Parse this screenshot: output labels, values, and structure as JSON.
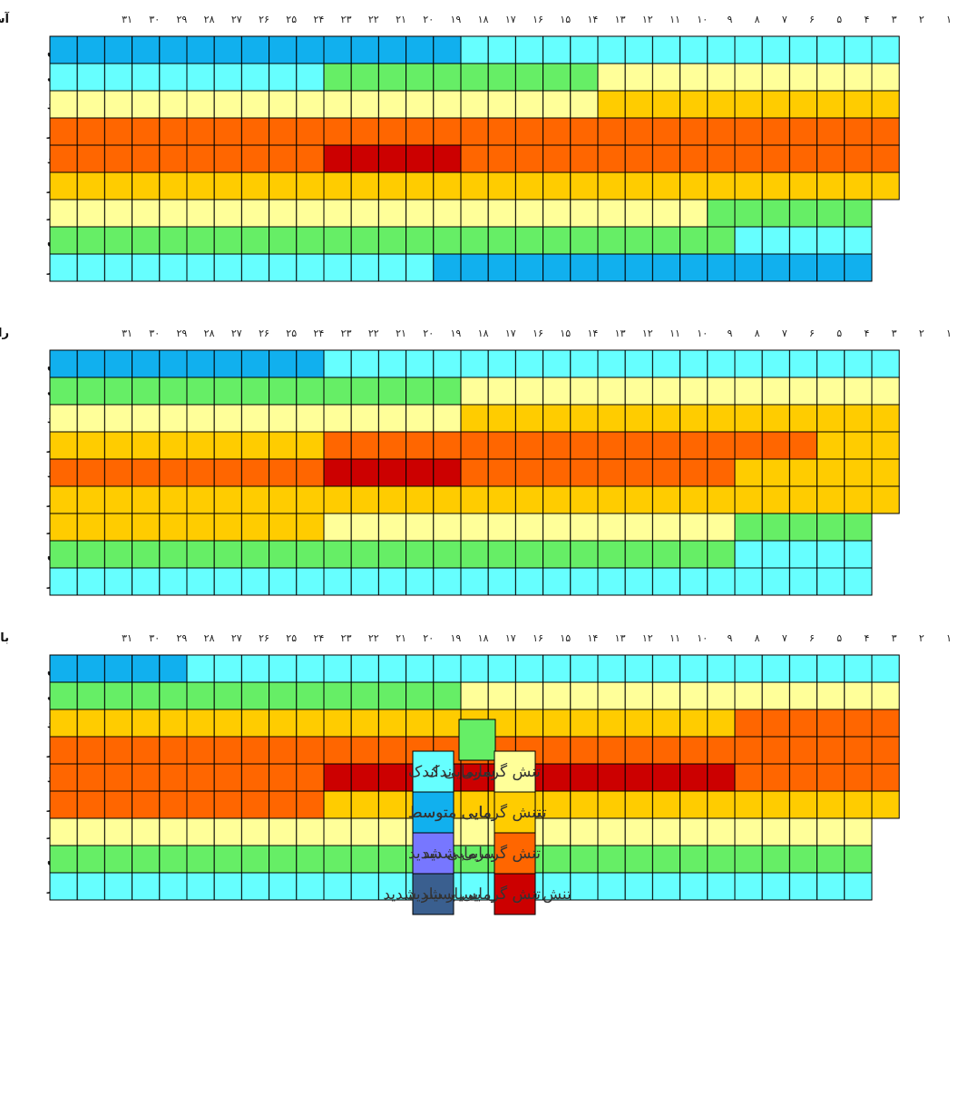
{
  "chart_data": [
    {
      "type": "heatmap",
      "title": "آستارا انزلی",
      "x_tick_labels": [
        "۱",
        "۲",
        "۳",
        "۴",
        "۵",
        "۶",
        "۷",
        "۸",
        "۹",
        "۱۰",
        "۱۱",
        "۱۲",
        "۱۳",
        "۱۴",
        "۱۵",
        "۱۶",
        "۱۷",
        "۱۸",
        "۱۹",
        "۲۰",
        "۲۱",
        "۲۲",
        "۲۳",
        "۲۴",
        "۲۵",
        "۲۶",
        "۲۷",
        "۲۸",
        "۲۹",
        "۳۰",
        "۳۱"
      ],
      "rows": [
        "فروردین",
        "اردیبهشت",
        "خرداد",
        "تیر",
        "مرداد",
        "شهریور",
        "مهر",
        "آبان",
        "آذر"
      ],
      "days_in_row": [
        31,
        31,
        31,
        31,
        31,
        31,
        30,
        30,
        30
      ],
      "runs": [
        [
          [
            15,
            "cold_moderate"
          ],
          [
            16,
            "cold_slight"
          ]
        ],
        [
          [
            10,
            "cold_slight"
          ],
          [
            10,
            "neutral"
          ],
          [
            11,
            "heat_slight"
          ]
        ],
        [
          [
            20,
            "heat_slight"
          ],
          [
            11,
            "heat_moderate"
          ]
        ],
        [
          [
            31,
            "heat_strong"
          ]
        ],
        [
          [
            10,
            "heat_strong"
          ],
          [
            5,
            "heat_very_strong"
          ],
          [
            16,
            "heat_strong"
          ]
        ],
        [
          [
            31,
            "heat_moderate"
          ]
        ],
        [
          [
            24,
            "heat_slight"
          ],
          [
            6,
            "neutral"
          ]
        ],
        [
          [
            25,
            "neutral"
          ],
          [
            5,
            "cold_slight"
          ]
        ],
        [
          [
            14,
            "cold_slight"
          ],
          [
            16,
            "cold_moderate"
          ]
        ]
      ]
    },
    {
      "type": "heatmap",
      "title": "رامسر نوشهر",
      "x_tick_labels": [
        "۱",
        "۲",
        "۳",
        "۴",
        "۵",
        "۶",
        "۷",
        "۸",
        "۹",
        "۱۰",
        "۱۱",
        "۱۲",
        "۱۳",
        "۱۴",
        "۱۵",
        "۱۶",
        "۱۷",
        "۱۸",
        "۱۹",
        "۲۰",
        "۲۱",
        "۲۲",
        "۲۳",
        "۲۴",
        "۲۵",
        "۲۶",
        "۲۷",
        "۲۸",
        "۲۹",
        "۳۰",
        "۳۱"
      ],
      "rows": [
        "فروردین",
        "اردیبهشت",
        "خرداد",
        "تیر",
        "مرداد",
        "شهریور",
        "مهر",
        "آبان",
        "آذر"
      ],
      "days_in_row": [
        31,
        31,
        31,
        31,
        31,
        31,
        30,
        30,
        30
      ],
      "runs": [
        [
          [
            10,
            "cold_moderate"
          ],
          [
            21,
            "cold_slight"
          ]
        ],
        [
          [
            15,
            "neutral"
          ],
          [
            16,
            "heat_slight"
          ]
        ],
        [
          [
            15,
            "heat_slight"
          ],
          [
            16,
            "heat_moderate"
          ]
        ],
        [
          [
            10,
            "heat_moderate"
          ],
          [
            18,
            "heat_strong"
          ],
          [
            3,
            "heat_moderate"
          ]
        ],
        [
          [
            10,
            "heat_strong"
          ],
          [
            5,
            "heat_very_strong"
          ],
          [
            10,
            "heat_strong"
          ],
          [
            6,
            "heat_moderate"
          ]
        ],
        [
          [
            31,
            "heat_moderate"
          ]
        ],
        [
          [
            10,
            "heat_moderate"
          ],
          [
            15,
            "heat_slight"
          ],
          [
            5,
            "neutral"
          ]
        ],
        [
          [
            25,
            "neutral"
          ],
          [
            5,
            "cold_slight"
          ]
        ],
        [
          [
            30,
            "cold_slight"
          ]
        ]
      ]
    },
    {
      "type": "heatmap",
      "title": "بابلسر امیرآباد",
      "x_tick_labels": [
        "۱",
        "۲",
        "۳",
        "۴",
        "۵",
        "۶",
        "۷",
        "۸",
        "۹",
        "۱۰",
        "۱۱",
        "۱۲",
        "۱۳",
        "۱۴",
        "۱۵",
        "۱۶",
        "۱۷",
        "۱۸",
        "۱۹",
        "۲۰",
        "۲۱",
        "۲۲",
        "۲۳",
        "۲۴",
        "۲۵",
        "۲۶",
        "۲۷",
        "۲۸",
        "۲۹",
        "۳۰",
        "۳۱"
      ],
      "rows": [
        "فروردین",
        "اردیبهشت",
        "خرداد",
        "تیر",
        "مرداد",
        "شهریور",
        "مهر",
        "آبان",
        "آذر"
      ],
      "days_in_row": [
        31,
        31,
        31,
        31,
        31,
        31,
        30,
        30,
        30
      ],
      "runs": [
        [
          [
            5,
            "cold_moderate"
          ],
          [
            26,
            "cold_slight"
          ]
        ],
        [
          [
            15,
            "neutral"
          ],
          [
            16,
            "heat_slight"
          ]
        ],
        [
          [
            10,
            "heat_moderate"
          ],
          [
            15,
            "heat_moderate"
          ],
          [
            6,
            "heat_strong"
          ]
        ],
        [
          [
            31,
            "heat_strong"
          ]
        ],
        [
          [
            10,
            "heat_strong"
          ],
          [
            15,
            "heat_very_strong"
          ],
          [
            6,
            "heat_strong"
          ]
        ],
        [
          [
            10,
            "heat_strong"
          ],
          [
            21,
            "heat_moderate"
          ]
        ],
        [
          [
            30,
            "heat_slight"
          ]
        ],
        [
          [
            30,
            "neutral"
          ]
        ],
        [
          [
            30,
            "cold_slight"
          ]
        ]
      ]
    }
  ],
  "palette": {
    "neutral": "#66ee66",
    "cold_slight": "#66ffff",
    "cold_moderate": "#11b0ee",
    "cold_strong": "#7777ff",
    "cold_very_strong": "#3a5f8f",
    "heat_slight": "#ffff99",
    "heat_moderate": "#ffcc00",
    "heat_strong": "#ff6600",
    "heat_very_strong": "#cc0000"
  },
  "legend": {
    "cold": [
      {
        "key": "cold_slight",
        "label": "تنش سرمایی اندک"
      },
      {
        "key": "cold_moderate",
        "label": "تنش سرمایی متوسط"
      },
      {
        "key": "cold_strong",
        "label": "تنش سرمایی شدید"
      },
      {
        "key": "cold_very_strong",
        "label": "تنش سرمایی بسیار شدید"
      }
    ],
    "heat": [
      {
        "key": "heat_slight",
        "label": "تنش گرمایی اندک"
      },
      {
        "key": "heat_moderate",
        "label": "تنش گرمایی متوسط"
      },
      {
        "key": "heat_strong",
        "label": "تنش گرمایی شدید"
      },
      {
        "key": "heat_very_strong",
        "label": "تنش گرمایی بسیار شدید"
      }
    ],
    "neutral_key": "neutral"
  }
}
